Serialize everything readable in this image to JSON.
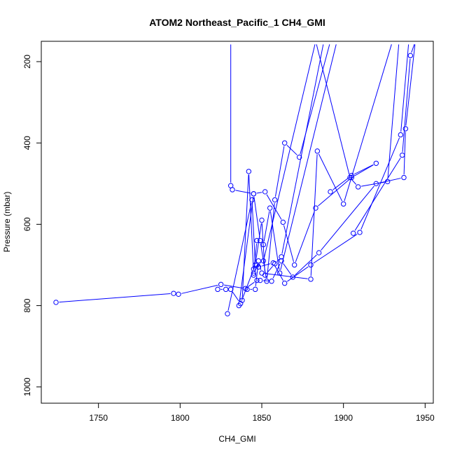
{
  "chart_data": {
    "type": "line",
    "title": "ATOM2 Northeast_Pacific_1 CH4_GMI",
    "xlabel": "CH4_GMI",
    "ylabel": "Pressure (mbar)",
    "xlim": [
      1715,
      1955
    ],
    "ylim": [
      1040,
      150
    ],
    "y_reversed": true,
    "x_ticks": [
      1750,
      1800,
      1850,
      1900,
      1950
    ],
    "y_ticks": [
      200,
      400,
      600,
      800,
      1000
    ],
    "grid": false,
    "legend": "none",
    "series_color": "#0000ff",
    "series": [
      {
        "x": [
          1831,
          1831,
          1832,
          1845,
          1852,
          1863,
          1870,
          1883,
          1905,
          1920,
          1905,
          1892
        ],
        "y": [
          150,
          505,
          515,
          525,
          520,
          595,
          700,
          560,
          485,
          450,
          480,
          520
        ]
      },
      {
        "x": [
          1823,
          1828,
          1831,
          1837,
          1845,
          1848,
          1857,
          1864,
          1880,
          1910,
          1935,
          1940
        ],
        "y": [
          760,
          760,
          760,
          795,
          710,
          705,
          695,
          745,
          700,
          620,
          380,
          150
        ]
      },
      {
        "x": [
          1724,
          1796,
          1799,
          1825,
          1840,
          1847,
          1849,
          1856,
          1862,
          1869,
          1885,
          1920,
          1937,
          1938,
          1944
        ],
        "y": [
          792,
          770,
          772,
          748,
          758,
          738,
          738,
          740,
          690,
          730,
          670,
          500,
          485,
          365,
          150
        ]
      },
      {
        "x": [
          1829,
          1844,
          1846,
          1850,
          1852,
          1858,
          1862,
          1888
        ],
        "y": [
          820,
          540,
          700,
          590,
          725,
          697,
          680,
          150
        ]
      },
      {
        "x": [
          1836,
          1845,
          1849,
          1853,
          1858,
          1864,
          1873,
          1892
        ],
        "y": [
          800,
          525,
          640,
          740,
          540,
          400,
          435,
          150
        ]
      },
      {
        "x": [
          1838,
          1842,
          1845,
          1847,
          1851,
          1855,
          1861,
          1896
        ],
        "y": [
          787,
          470,
          720,
          640,
          650,
          560,
          720,
          150
        ]
      },
      {
        "x": [
          1841,
          1846,
          1848,
          1850,
          1880,
          1884,
          1900,
          1930
        ],
        "y": [
          760,
          760,
          690,
          720,
          735,
          420,
          550,
          150
        ]
      },
      {
        "x": [
          1845,
          1847,
          1851,
          1883,
          1904,
          1909,
          1927,
          1934
        ],
        "y": [
          725,
          700,
          690,
          150,
          485,
          508,
          495,
          150
        ]
      },
      {
        "x": [
          1906,
          1936,
          1941,
          1944
        ],
        "y": [
          622,
          430,
          185,
          150
        ]
      }
    ]
  }
}
